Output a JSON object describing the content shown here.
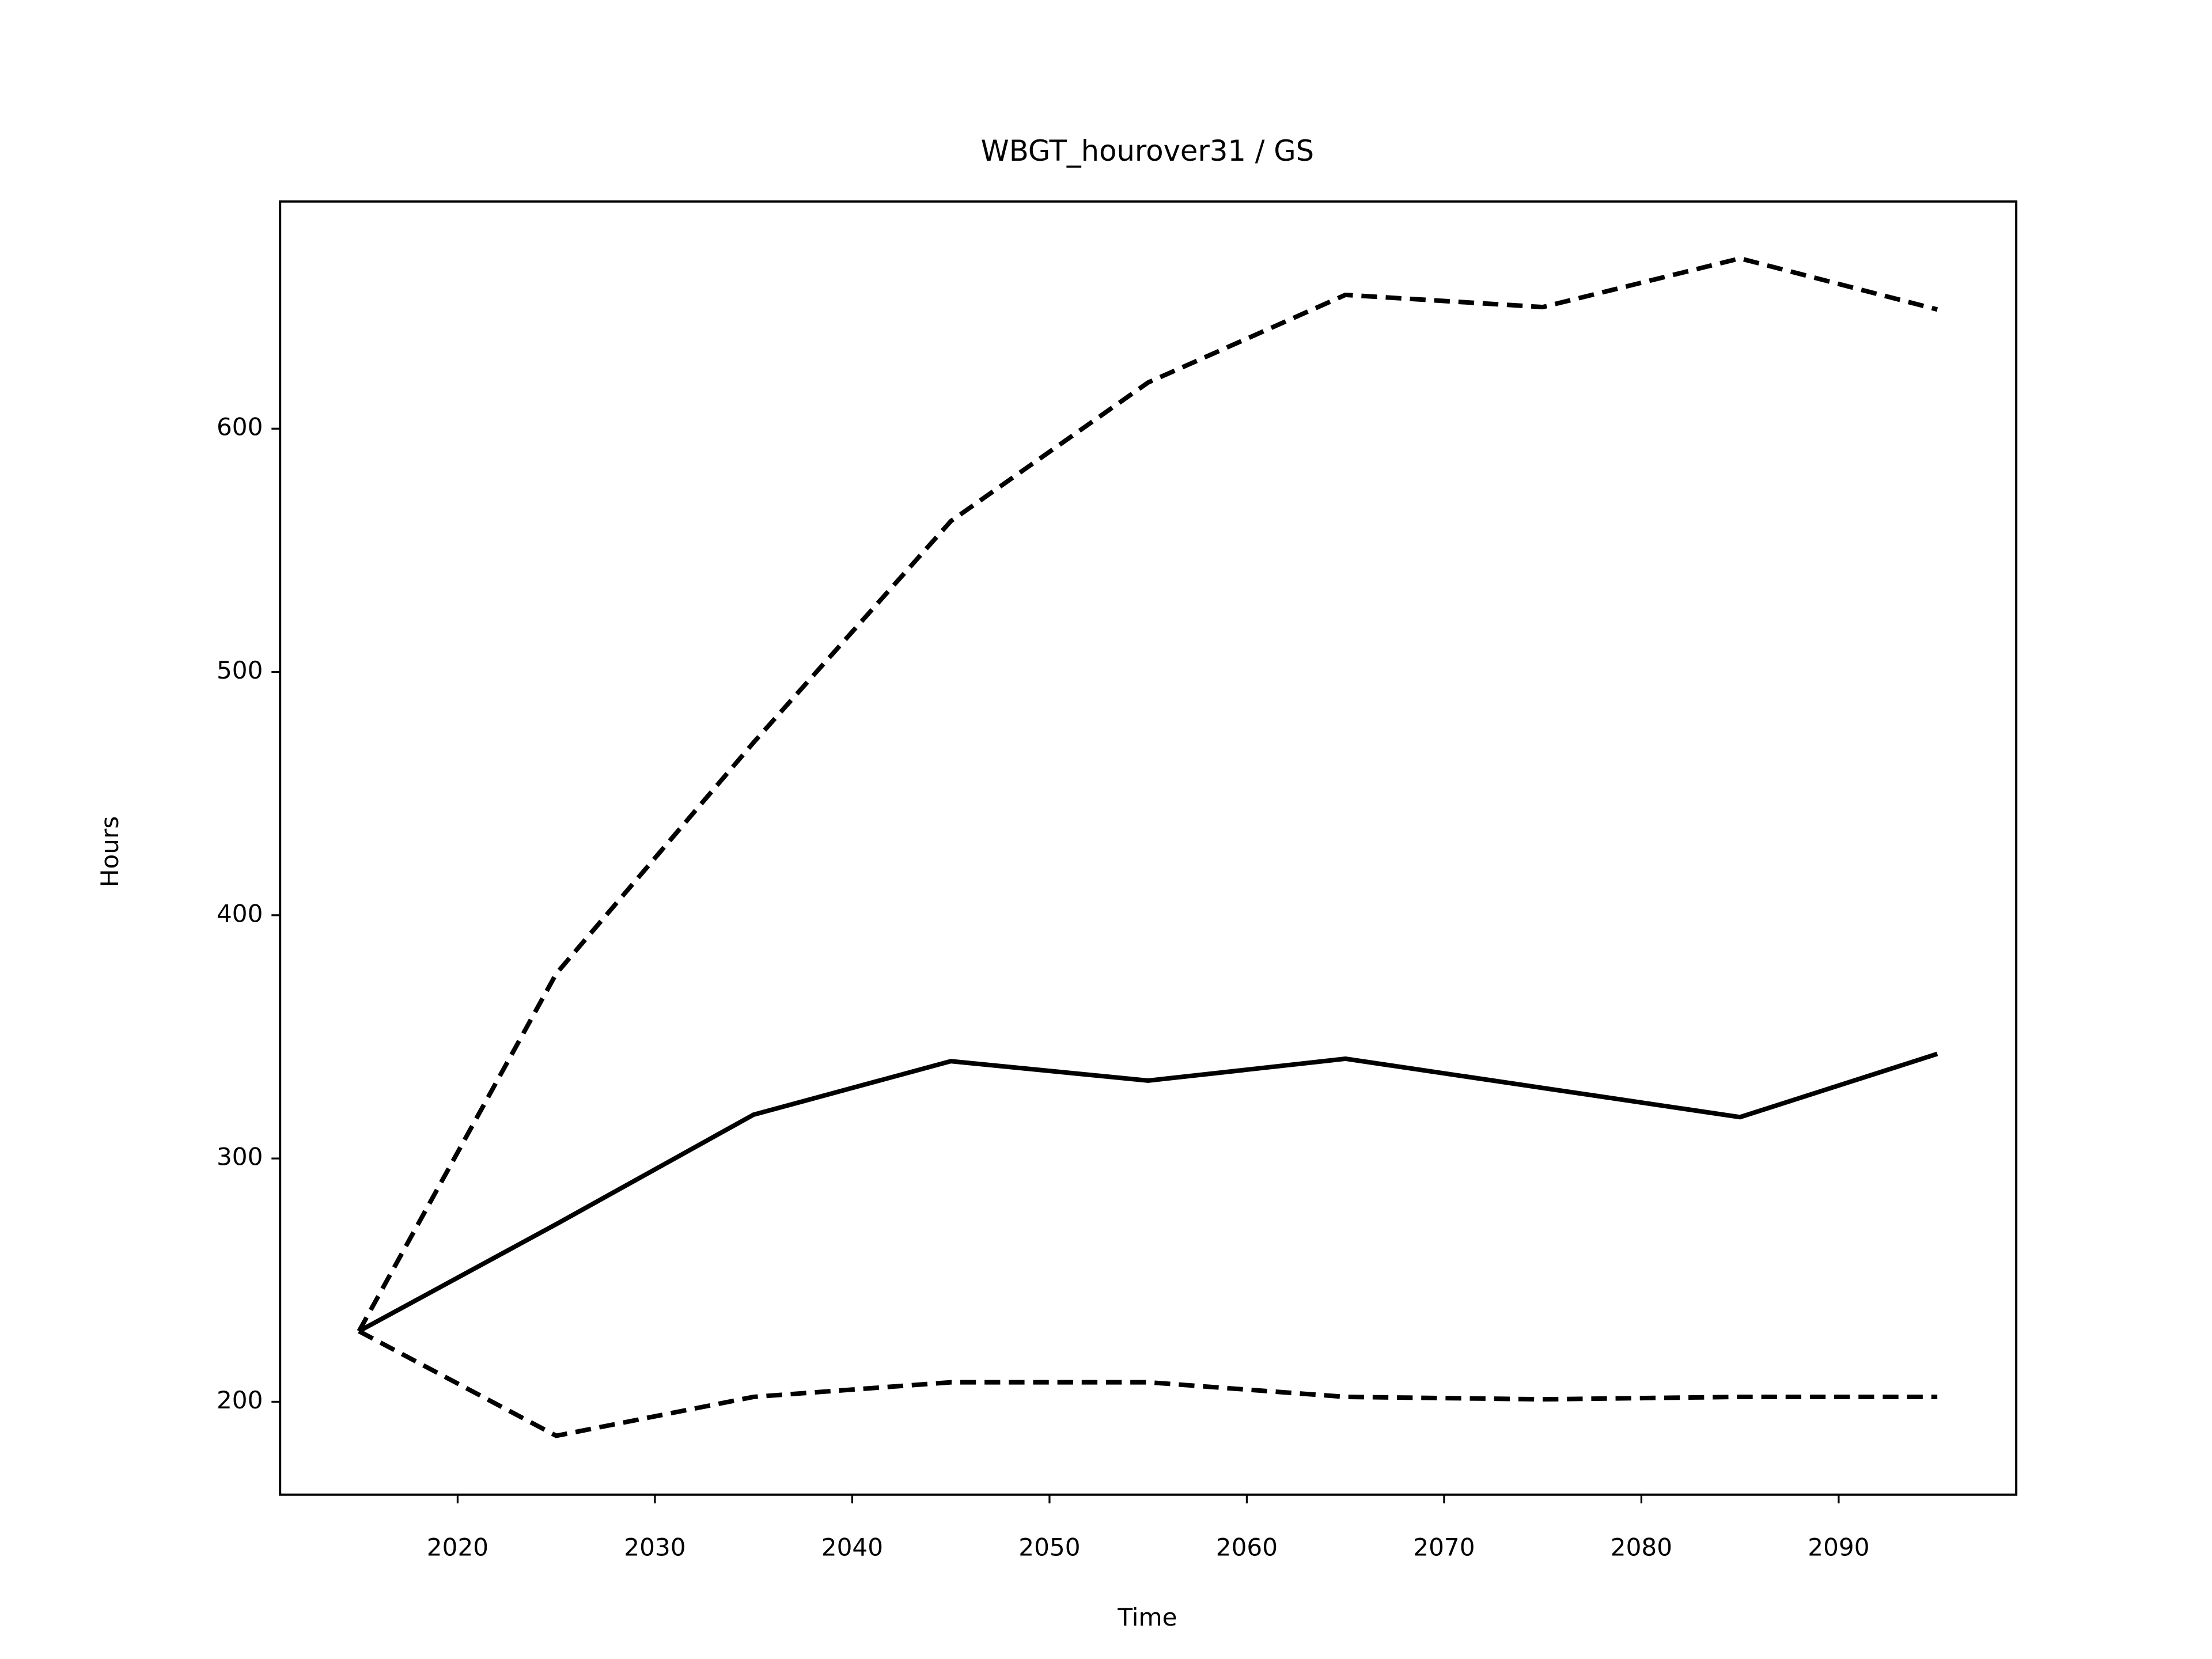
{
  "chart_data": {
    "type": "line",
    "title": "WBGT_hourover31 / GS",
    "xlabel": "Time",
    "ylabel": "Hours",
    "x": [
      2015,
      2025,
      2035,
      2045,
      2055,
      2065,
      2075,
      2085,
      2095
    ],
    "series": [
      {
        "color": "#000000",
        "dashed": false,
        "values": [
          229,
          273,
          318,
          340,
          332,
          341,
          329,
          317,
          343
        ]
      },
      {
        "color": "#000000",
        "dashed": true,
        "values": [
          229,
          376,
          471,
          562,
          619,
          655,
          650,
          670,
          649
        ]
      },
      {
        "color": "#000000",
        "dashed": true,
        "values": [
          229,
          186,
          202,
          208,
          208,
          202,
          201,
          202,
          202
        ]
      }
    ],
    "xlim": [
      2011,
      2099
    ],
    "xticks": [
      2020,
      2030,
      2040,
      2050,
      2060,
      2070,
      2080,
      2090
    ],
    "ylim": [
      161.8,
      693.4
    ],
    "yticks": [
      200,
      300,
      400,
      500,
      600
    ],
    "grid": false
  }
}
